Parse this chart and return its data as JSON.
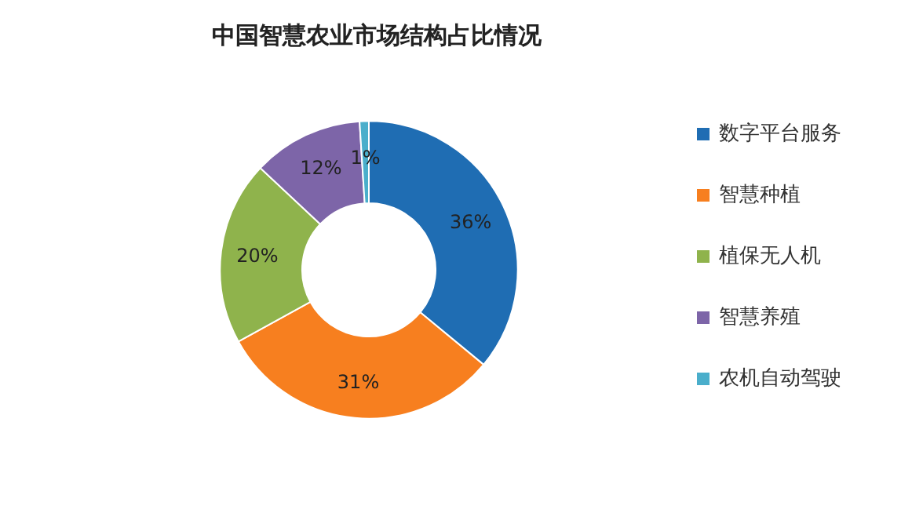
{
  "chart_data": {
    "type": "donut",
    "title": "中国智慧农业市场结构占比情况",
    "categories": [
      "数字平台服务",
      "智慧种植",
      "植保无人机",
      "智慧养殖",
      "农机自动驾驶"
    ],
    "values": [
      36,
      31,
      20,
      12,
      1
    ],
    "value_labels": [
      "36%",
      "31%",
      "20%",
      "12%",
      "1%"
    ],
    "colors": [
      "#1f6db3",
      "#f77f1f",
      "#8fb34c",
      "#7d65a8",
      "#4aaecb"
    ],
    "legend": "right"
  }
}
